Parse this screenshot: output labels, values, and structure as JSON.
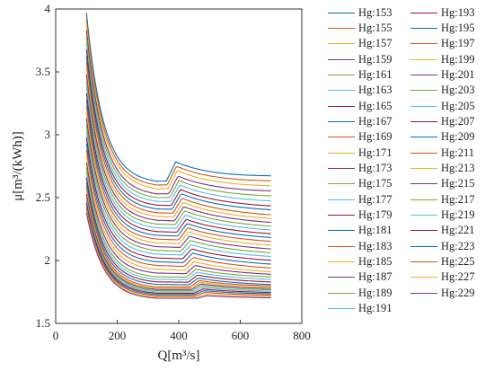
{
  "chart_data": {
    "type": "line",
    "xlabel": "Q[m³/s]",
    "ylabel": "μ[m³/(kWh)]",
    "xlim": [
      0,
      800
    ],
    "ylim": [
      1.5,
      4
    ],
    "xticks": [
      "0",
      "200",
      "400",
      "600",
      "800"
    ],
    "yticks": [
      "1.5",
      "2",
      "2.5",
      "3",
      "3.5",
      "4"
    ],
    "grid": false,
    "legend_position": "outside-right",
    "x_range": [
      100,
      700
    ],
    "series": [
      {
        "name": "Hg:153",
        "color": "#0072BD",
        "y_at_100": 3.97,
        "y_at_330": 2.63,
        "y_at_700": 2.66
      },
      {
        "name": "Hg:155",
        "color": "#D95319",
        "y_at_100": 3.92,
        "y_at_330": 2.6,
        "y_at_700": 2.62
      },
      {
        "name": "Hg:157",
        "color": "#EDB120",
        "y_at_100": 3.88,
        "y_at_330": 2.57,
        "y_at_700": 2.58
      },
      {
        "name": "Hg:159",
        "color": "#7E2F8E",
        "y_at_100": 3.83,
        "y_at_330": 2.53,
        "y_at_700": 2.54
      },
      {
        "name": "Hg:161",
        "color": "#77AC30",
        "y_at_100": 3.78,
        "y_at_330": 2.5,
        "y_at_700": 2.5
      },
      {
        "name": "Hg:163",
        "color": "#4DBEEE",
        "y_at_100": 3.73,
        "y_at_330": 2.47,
        "y_at_700": 2.46
      },
      {
        "name": "Hg:165",
        "color": "#A2142F",
        "y_at_100": 3.68,
        "y_at_330": 2.44,
        "y_at_700": 2.42
      },
      {
        "name": "Hg:167",
        "color": "#0072BD",
        "y_at_100": 3.63,
        "y_at_330": 2.41,
        "y_at_700": 2.39
      },
      {
        "name": "Hg:169",
        "color": "#D95319",
        "y_at_100": 3.58,
        "y_at_330": 2.38,
        "y_at_700": 2.35
      },
      {
        "name": "Hg:171",
        "color": "#EDB120",
        "y_at_100": 3.53,
        "y_at_330": 2.35,
        "y_at_700": 2.32
      },
      {
        "name": "Hg:173",
        "color": "#7E2F8E",
        "y_at_100": 3.48,
        "y_at_330": 2.32,
        "y_at_700": 2.29
      },
      {
        "name": "Hg:175",
        "color": "#77AC30",
        "y_at_100": 3.43,
        "y_at_330": 2.29,
        "y_at_700": 2.26
      },
      {
        "name": "Hg:177",
        "color": "#4DBEEE",
        "y_at_100": 3.38,
        "y_at_330": 2.26,
        "y_at_700": 2.23
      },
      {
        "name": "Hg:179",
        "color": "#A2142F",
        "y_at_100": 3.33,
        "y_at_330": 2.23,
        "y_at_700": 2.2
      },
      {
        "name": "Hg:181",
        "color": "#0072BD",
        "y_at_100": 3.28,
        "y_at_330": 2.2,
        "y_at_700": 2.17
      },
      {
        "name": "Hg:183",
        "color": "#D95319",
        "y_at_100": 3.23,
        "y_at_330": 2.17,
        "y_at_700": 2.14
      },
      {
        "name": "Hg:185",
        "color": "#EDB120",
        "y_at_100": 3.18,
        "y_at_330": 2.14,
        "y_at_700": 2.11
      },
      {
        "name": "Hg:187",
        "color": "#7E2F8E",
        "y_at_100": 3.13,
        "y_at_330": 2.11,
        "y_at_700": 2.08
      },
      {
        "name": "Hg:189",
        "color": "#77AC30",
        "y_at_100": 3.08,
        "y_at_330": 2.08,
        "y_at_700": 2.05
      },
      {
        "name": "Hg:191",
        "color": "#4DBEEE",
        "y_at_100": 3.03,
        "y_at_330": 2.05,
        "y_at_700": 2.02
      },
      {
        "name": "Hg:193",
        "color": "#A2142F",
        "y_at_100": 2.98,
        "y_at_330": 2.02,
        "y_at_700": 1.99
      },
      {
        "name": "Hg:195",
        "color": "#0072BD",
        "y_at_100": 2.93,
        "y_at_330": 1.99,
        "y_at_700": 1.96
      },
      {
        "name": "Hg:197",
        "color": "#D95319",
        "y_at_100": 2.88,
        "y_at_330": 1.96,
        "y_at_700": 1.93
      },
      {
        "name": "Hg:199",
        "color": "#EDB120",
        "y_at_100": 2.83,
        "y_at_330": 1.93,
        "y_at_700": 1.9
      },
      {
        "name": "Hg:201",
        "color": "#7E2F8E",
        "y_at_100": 2.78,
        "y_at_330": 1.9,
        "y_at_700": 1.88
      },
      {
        "name": "Hg:203",
        "color": "#77AC30",
        "y_at_100": 2.74,
        "y_at_330": 1.87,
        "y_at_700": 1.86
      },
      {
        "name": "Hg:205",
        "color": "#4DBEEE",
        "y_at_100": 2.7,
        "y_at_330": 1.85,
        "y_at_700": 1.84
      },
      {
        "name": "Hg:207",
        "color": "#A2142F",
        "y_at_100": 2.66,
        "y_at_330": 1.83,
        "y_at_700": 1.82
      },
      {
        "name": "Hg:209",
        "color": "#0072BD",
        "y_at_100": 2.62,
        "y_at_330": 1.81,
        "y_at_700": 1.8
      },
      {
        "name": "Hg:211",
        "color": "#D95319",
        "y_at_100": 2.59,
        "y_at_330": 1.79,
        "y_at_700": 1.79
      },
      {
        "name": "Hg:213",
        "color": "#EDB120",
        "y_at_100": 2.56,
        "y_at_330": 1.78,
        "y_at_700": 1.78
      },
      {
        "name": "Hg:215",
        "color": "#7E2F8E",
        "y_at_100": 2.53,
        "y_at_330": 1.77,
        "y_at_700": 1.77
      },
      {
        "name": "Hg:217",
        "color": "#77AC30",
        "y_at_100": 2.5,
        "y_at_330": 1.76,
        "y_at_700": 1.76
      },
      {
        "name": "Hg:219",
        "color": "#4DBEEE",
        "y_at_100": 2.48,
        "y_at_330": 1.75,
        "y_at_700": 1.75
      },
      {
        "name": "Hg:221",
        "color": "#A2142F",
        "y_at_100": 2.46,
        "y_at_330": 1.74,
        "y_at_700": 1.74
      },
      {
        "name": "Hg:223",
        "color": "#0072BD",
        "y_at_100": 2.44,
        "y_at_330": 1.73,
        "y_at_700": 1.73
      },
      {
        "name": "Hg:225",
        "color": "#D95319",
        "y_at_100": 2.42,
        "y_at_330": 1.72,
        "y_at_700": 1.72
      },
      {
        "name": "Hg:227",
        "color": "#EDB120",
        "y_at_100": 2.4,
        "y_at_330": 1.71,
        "y_at_700": 1.71
      },
      {
        "name": "Hg:229",
        "color": "#7E2F8E",
        "y_at_100": 2.38,
        "y_at_330": 1.7,
        "y_at_700": 1.7
      }
    ]
  }
}
